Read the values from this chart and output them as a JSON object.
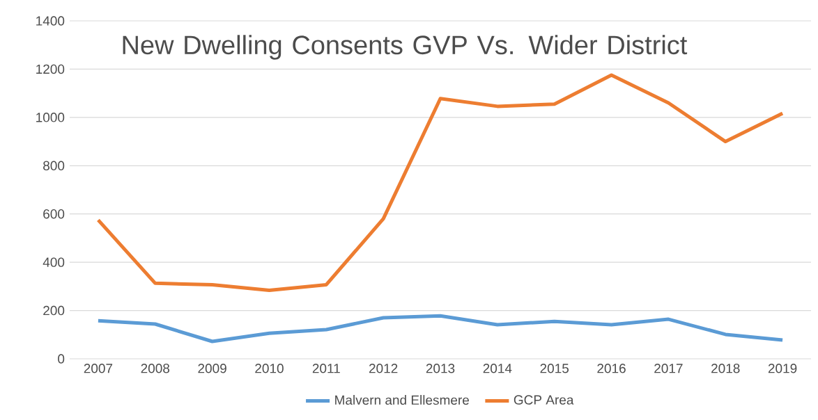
{
  "chart_data": {
    "type": "line",
    "title": "New Dwelling Consents GVP Vs. Wider District",
    "categories": [
      "2007",
      "2008",
      "2009",
      "2010",
      "2011",
      "2012",
      "2013",
      "2014",
      "2015",
      "2016",
      "2017",
      "2018",
      "2019"
    ],
    "series": [
      {
        "name": "Malvern and Ellesmere",
        "color": "#5b9bd5",
        "values": [
          158,
          144,
          72,
          106,
          121,
          170,
          178,
          141,
          155,
          141,
          164,
          101,
          78
        ]
      },
      {
        "name": "GCP Area",
        "color": "#ed7d31",
        "values": [
          575,
          313,
          307,
          284,
          307,
          580,
          1078,
          1046,
          1055,
          1175,
          1060,
          900,
          1017
        ]
      }
    ],
    "ylim": [
      0,
      1400
    ],
    "yticks": [
      0,
      200,
      400,
      600,
      800,
      1000,
      1200,
      1400
    ],
    "grid": "y",
    "legend": "bottom",
    "marker": "none",
    "line_style": "solid"
  }
}
